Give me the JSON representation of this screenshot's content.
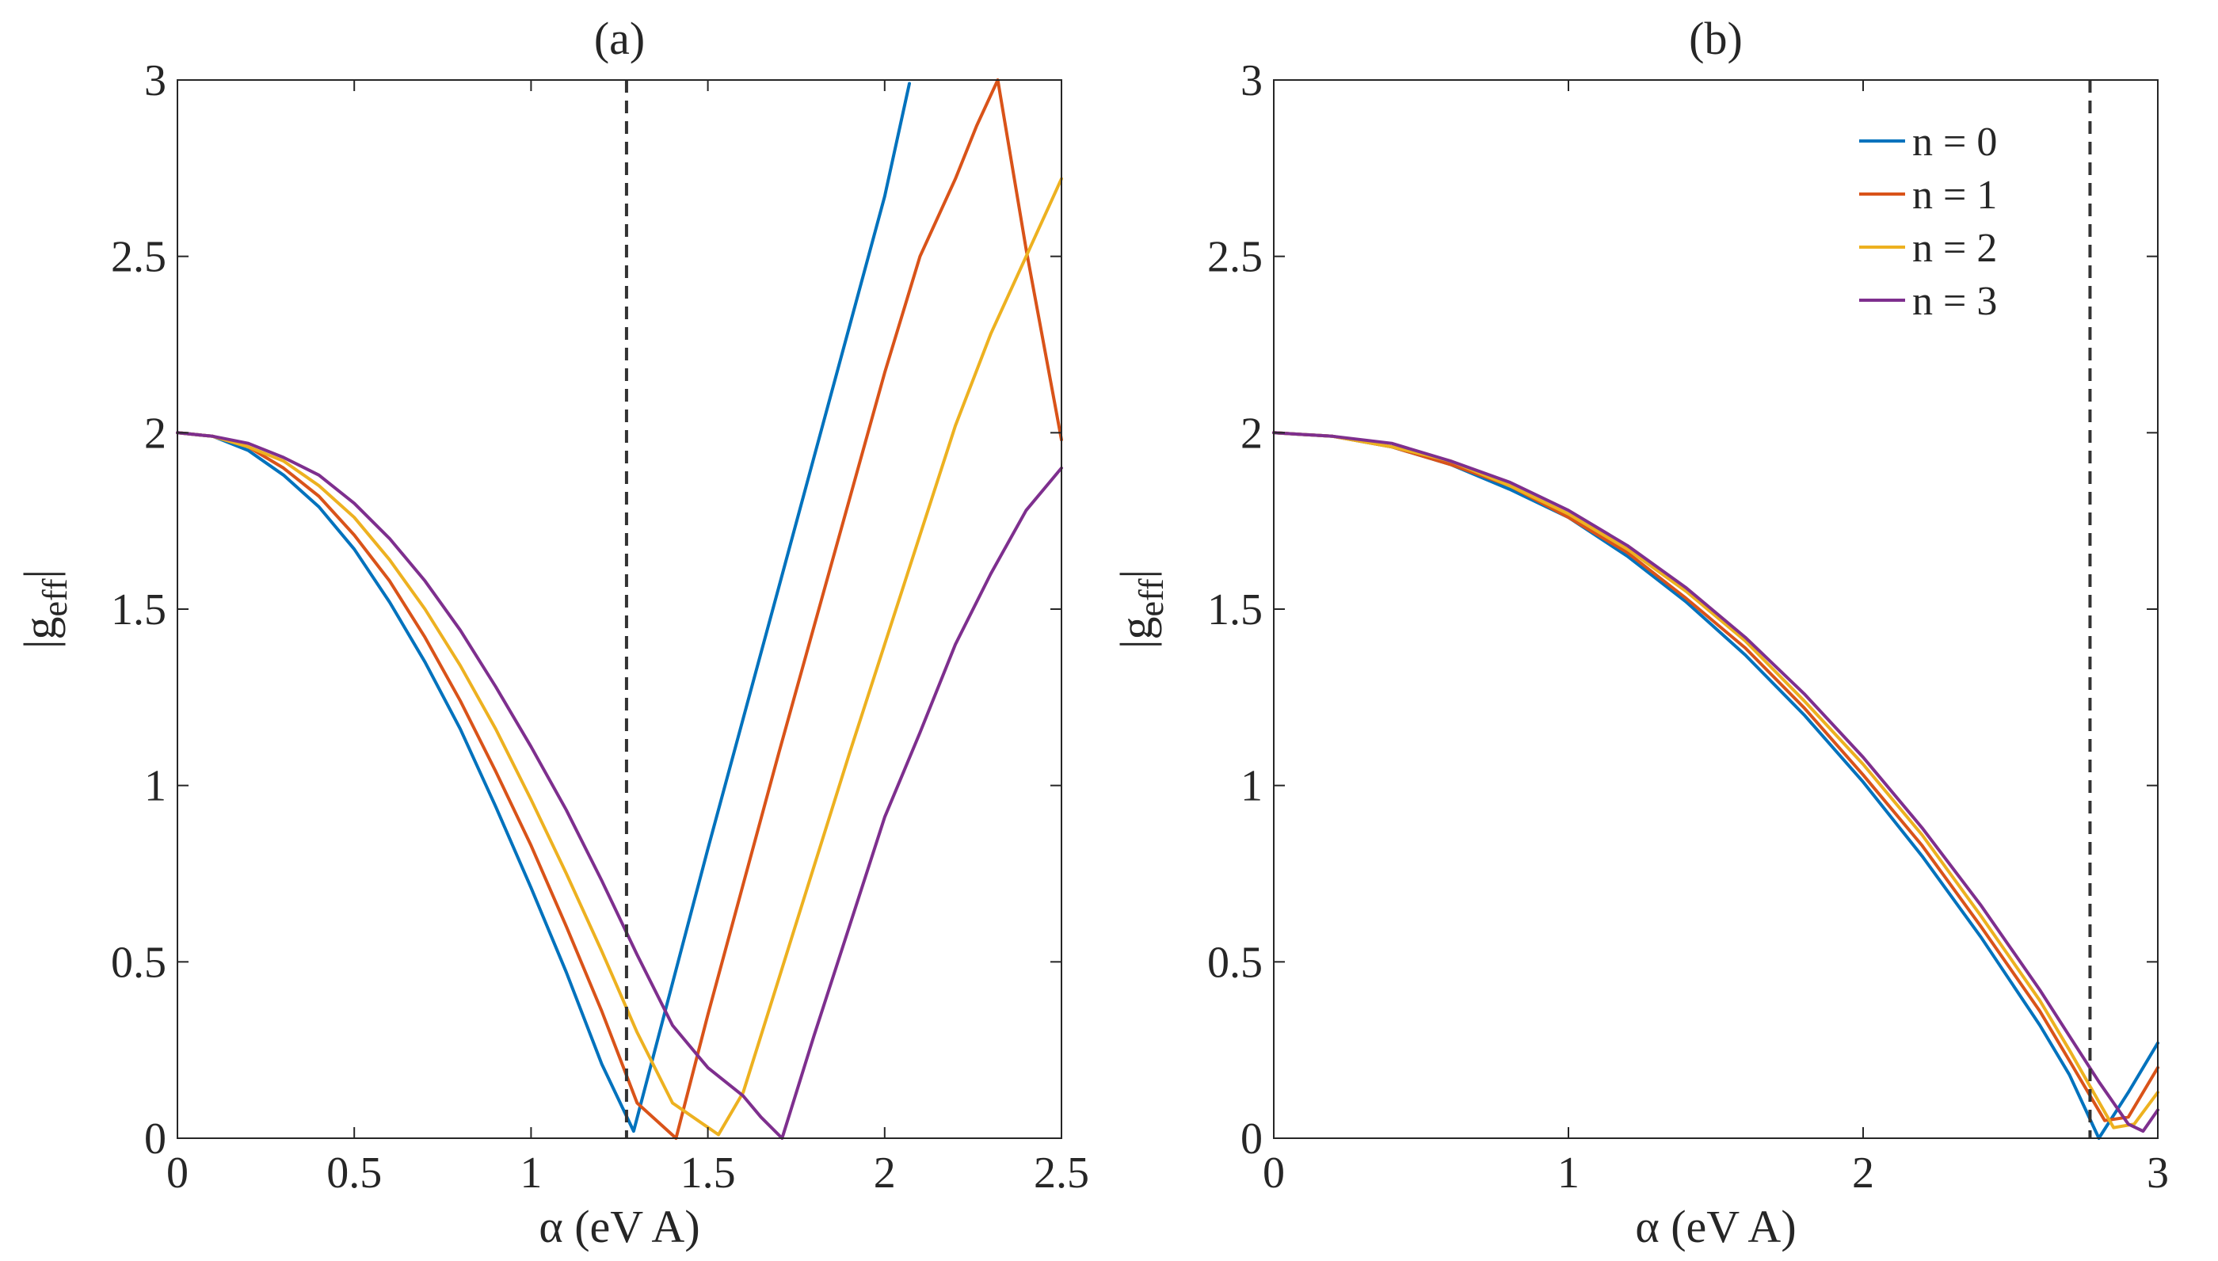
{
  "chart_data": [
    {
      "type": "line",
      "title": "(a)",
      "xlabel": "α (eV A)",
      "ylabel": "|g",
      "ylabel_sub": "eff",
      "ylabel_close": "|",
      "xlim": [
        0,
        2.5
      ],
      "ylim": [
        0,
        3
      ],
      "xticks": [
        0,
        0.5,
        1,
        1.5,
        2,
        2.5
      ],
      "xtick_labels": [
        "0",
        "0.5",
        "1",
        "1.5",
        "2",
        "2.5"
      ],
      "yticks": [
        0,
        0.5,
        1,
        1.5,
        2,
        2.5,
        3
      ],
      "ytick_labels": [
        "0",
        "0.5",
        "1",
        "1.5",
        "2",
        "2.5",
        "3"
      ],
      "grid": false,
      "legend": null,
      "vline": {
        "x": 1.27,
        "style": "dashed",
        "color": "#333333"
      },
      "series": [
        {
          "name": "n = 0",
          "color": "#0072BD",
          "x": [
            0,
            0.1,
            0.2,
            0.3,
            0.4,
            0.5,
            0.6,
            0.7,
            0.8,
            0.9,
            1.0,
            1.1,
            1.2,
            1.29,
            1.4,
            1.5,
            1.6,
            1.7,
            1.8,
            1.9,
            2.0,
            2.07
          ],
          "y": [
            2.0,
            1.99,
            1.95,
            1.88,
            1.79,
            1.67,
            1.52,
            1.35,
            1.16,
            0.94,
            0.71,
            0.47,
            0.21,
            0.02,
            0.44,
            0.82,
            1.19,
            1.56,
            1.93,
            2.3,
            2.67,
            2.99
          ]
        },
        {
          "name": "n = 1",
          "color": "#D95319",
          "x": [
            0,
            0.1,
            0.2,
            0.3,
            0.4,
            0.5,
            0.6,
            0.7,
            0.8,
            0.9,
            1.0,
            1.1,
            1.2,
            1.3,
            1.41,
            1.5,
            1.6,
            1.7,
            1.8,
            1.9,
            2.0,
            2.1,
            2.2,
            2.26,
            2.32,
            2.4,
            2.5
          ],
          "y": [
            2.0,
            1.99,
            1.96,
            1.9,
            1.82,
            1.71,
            1.58,
            1.42,
            1.24,
            1.04,
            0.83,
            0.6,
            0.36,
            0.1,
            0.0,
            0.35,
            0.72,
            1.09,
            1.45,
            1.81,
            2.17,
            2.5,
            2.72,
            2.87,
            3.0,
            2.52,
            1.98
          ]
        },
        {
          "name": "n = 2",
          "color": "#EDB120",
          "x": [
            0,
            0.1,
            0.2,
            0.3,
            0.4,
            0.5,
            0.6,
            0.7,
            0.8,
            0.9,
            1.0,
            1.1,
            1.2,
            1.3,
            1.4,
            1.53,
            1.6,
            1.7,
            1.8,
            1.9,
            2.0,
            2.1,
            2.2,
            2.3,
            2.4,
            2.5
          ],
          "y": [
            2.0,
            1.99,
            1.96,
            1.92,
            1.85,
            1.76,
            1.64,
            1.5,
            1.34,
            1.16,
            0.96,
            0.75,
            0.53,
            0.3,
            0.1,
            0.01,
            0.13,
            0.45,
            0.77,
            1.09,
            1.4,
            1.71,
            2.02,
            2.28,
            2.5,
            2.72
          ]
        },
        {
          "name": "n = 3",
          "color": "#7E2F8E",
          "x": [
            0,
            0.1,
            0.2,
            0.3,
            0.4,
            0.5,
            0.6,
            0.7,
            0.8,
            0.9,
            1.0,
            1.1,
            1.2,
            1.3,
            1.4,
            1.5,
            1.6,
            1.65,
            1.71,
            1.8,
            1.9,
            2.0,
            2.1,
            2.2,
            2.3,
            2.4,
            2.5
          ],
          "y": [
            2.0,
            1.99,
            1.97,
            1.93,
            1.88,
            1.8,
            1.7,
            1.58,
            1.44,
            1.28,
            1.11,
            0.93,
            0.73,
            0.52,
            0.32,
            0.2,
            0.12,
            0.06,
            0.0,
            0.29,
            0.6,
            0.91,
            1.15,
            1.4,
            1.6,
            1.78,
            1.9
          ]
        }
      ]
    },
    {
      "type": "line",
      "title": "(b)",
      "xlabel": "α (eV A)",
      "ylabel": "|g",
      "ylabel_sub": "eff",
      "ylabel_close": "|",
      "xlim": [
        0,
        3
      ],
      "ylim": [
        0,
        3
      ],
      "xticks": [
        0,
        1,
        2,
        3
      ],
      "xtick_labels": [
        "0",
        "1",
        "2",
        "3"
      ],
      "yticks": [
        0,
        0.5,
        1,
        1.5,
        2,
        2.5,
        3
      ],
      "ytick_labels": [
        "0",
        "0.5",
        "1",
        "1.5",
        "2",
        "2.5",
        "3"
      ],
      "grid": false,
      "legend": "top-right",
      "vline": {
        "x": 2.77,
        "style": "dashed",
        "color": "#333333"
      },
      "series": [
        {
          "name": "n = 0",
          "color": "#0072BD",
          "x": [
            0,
            0.2,
            0.4,
            0.6,
            0.8,
            1.0,
            1.2,
            1.4,
            1.6,
            1.8,
            2.0,
            2.2,
            2.4,
            2.6,
            2.7,
            2.8,
            2.9,
            3.0
          ],
          "y": [
            2.0,
            1.99,
            1.96,
            1.91,
            1.84,
            1.76,
            1.65,
            1.52,
            1.37,
            1.2,
            1.01,
            0.8,
            0.57,
            0.32,
            0.18,
            0.0,
            0.13,
            0.27
          ]
        },
        {
          "name": "n = 1",
          "color": "#D95319",
          "x": [
            0,
            0.2,
            0.4,
            0.6,
            0.8,
            1.0,
            1.2,
            1.4,
            1.6,
            1.8,
            2.0,
            2.2,
            2.4,
            2.6,
            2.7,
            2.82,
            2.9,
            3.0
          ],
          "y": [
            2.0,
            1.99,
            1.96,
            1.91,
            1.85,
            1.76,
            1.66,
            1.53,
            1.39,
            1.22,
            1.03,
            0.83,
            0.6,
            0.36,
            0.22,
            0.05,
            0.06,
            0.2
          ]
        },
        {
          "name": "n = 2",
          "color": "#EDB120",
          "x": [
            0,
            0.2,
            0.4,
            0.6,
            0.8,
            1.0,
            1.2,
            1.4,
            1.6,
            1.8,
            2.0,
            2.2,
            2.4,
            2.6,
            2.7,
            2.85,
            2.92,
            3.0
          ],
          "y": [
            2.0,
            1.99,
            1.96,
            1.92,
            1.85,
            1.77,
            1.67,
            1.55,
            1.41,
            1.24,
            1.06,
            0.86,
            0.63,
            0.39,
            0.25,
            0.03,
            0.04,
            0.13
          ]
        },
        {
          "name": "n = 3",
          "color": "#7E2F8E",
          "x": [
            0,
            0.2,
            0.4,
            0.6,
            0.8,
            1.0,
            1.2,
            1.4,
            1.6,
            1.8,
            2.0,
            2.2,
            2.4,
            2.6,
            2.7,
            2.8,
            2.9,
            2.95,
            3.0
          ],
          "y": [
            2.0,
            1.99,
            1.97,
            1.92,
            1.86,
            1.78,
            1.68,
            1.56,
            1.42,
            1.26,
            1.08,
            0.88,
            0.66,
            0.42,
            0.29,
            0.16,
            0.04,
            0.02,
            0.08
          ]
        }
      ]
    }
  ]
}
